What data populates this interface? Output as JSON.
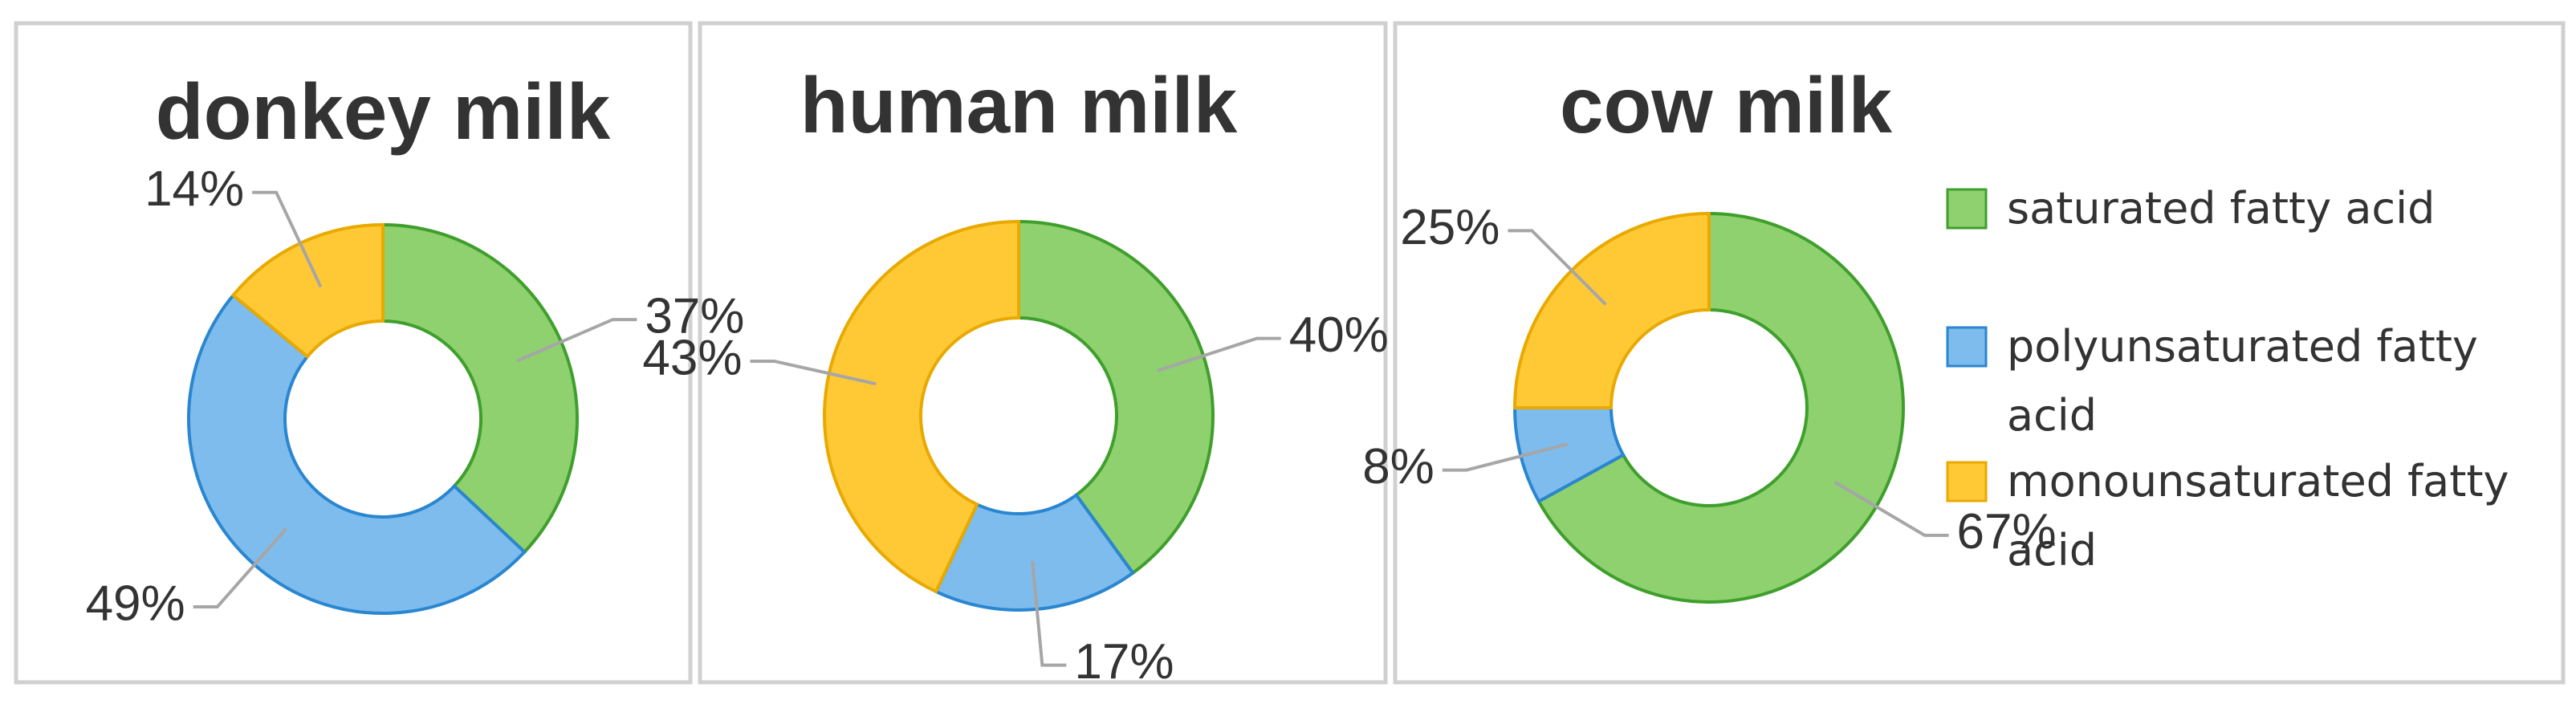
{
  "chart_data": [
    {
      "type": "donut",
      "title": "donkey milk",
      "values": [
        37,
        49,
        14
      ],
      "value_labels": [
        "37%",
        "49%",
        "14%"
      ],
      "colors": [
        "#8fd06f",
        "#7dbcec",
        "#ffc936"
      ]
    },
    {
      "type": "donut",
      "title": "human milk",
      "values": [
        40,
        17,
        43
      ],
      "value_labels": [
        "40%",
        "17%",
        "43%"
      ],
      "colors": [
        "#8fd06f",
        "#7dbcec",
        "#ffc936"
      ]
    },
    {
      "type": "donut",
      "title": "cow milk",
      "values": [
        67,
        8,
        25
      ],
      "value_labels": [
        "67%",
        "8%",
        "25%"
      ],
      "colors": [
        "#8fd06f",
        "#7dbcec",
        "#ffc936"
      ],
      "categories": [
        "saturated fatty acid",
        "polyunsaturated fatty acid",
        "monounsaturated fatty acid"
      ],
      "legend": "right"
    }
  ]
}
